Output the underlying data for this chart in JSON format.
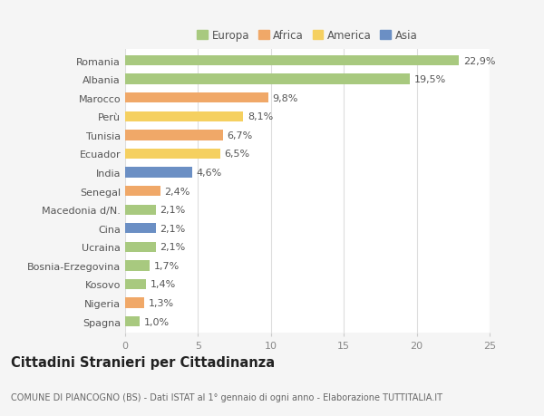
{
  "categories": [
    "Romania",
    "Albania",
    "Marocco",
    "Perù",
    "Tunisia",
    "Ecuador",
    "India",
    "Senegal",
    "Macedonia d/N.",
    "Cina",
    "Ucraina",
    "Bosnia-Erzegovina",
    "Kosovo",
    "Nigeria",
    "Spagna"
  ],
  "values": [
    22.9,
    19.5,
    9.8,
    8.1,
    6.7,
    6.5,
    4.6,
    2.4,
    2.1,
    2.1,
    2.1,
    1.7,
    1.4,
    1.3,
    1.0
  ],
  "labels": [
    "22,9%",
    "19,5%",
    "9,8%",
    "8,1%",
    "6,7%",
    "6,5%",
    "4,6%",
    "2,4%",
    "2,1%",
    "2,1%",
    "2,1%",
    "1,7%",
    "1,4%",
    "1,3%",
    "1,0%"
  ],
  "colors": [
    "#a8c97f",
    "#a8c97f",
    "#f0a868",
    "#f5d060",
    "#f0a868",
    "#f5d060",
    "#6b8fc4",
    "#f0a868",
    "#a8c97f",
    "#6b8fc4",
    "#a8c97f",
    "#a8c97f",
    "#a8c97f",
    "#f0a868",
    "#a8c97f"
  ],
  "legend": {
    "Europa": "#a8c97f",
    "Africa": "#f0a868",
    "America": "#f5d060",
    "Asia": "#6b8fc4"
  },
  "title": "Cittadini Stranieri per Cittadinanza",
  "subtitle": "COMUNE DI PIANCOGNO (BS) - Dati ISTAT al 1° gennaio di ogni anno - Elaborazione TUTTITALIA.IT",
  "xlim": [
    0,
    25
  ],
  "xticks": [
    0,
    5,
    10,
    15,
    20,
    25
  ],
  "bg_color": "#f5f5f5",
  "plot_bg": "#ffffff",
  "grid_color": "#dddddd",
  "bar_height": 0.55,
  "label_fontsize": 8.0,
  "tick_fontsize": 8.0,
  "title_fontsize": 10.5,
  "subtitle_fontsize": 7.0
}
